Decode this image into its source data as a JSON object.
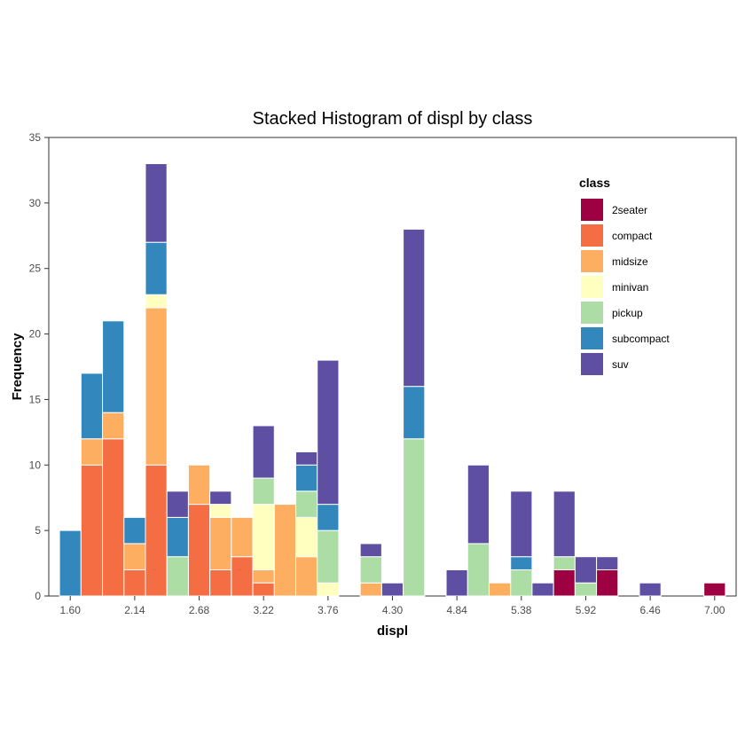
{
  "chart_data": {
    "type": "bar",
    "stacked": true,
    "title": "Stacked Histogram of displ by class",
    "xlabel": "displ",
    "ylabel": "Frequency",
    "bin_width": 0.18,
    "xlim": [
      1.42,
      7.18
    ],
    "ylim": [
      0,
      35
    ],
    "x_ticks": [
      "1.60",
      "2.14",
      "2.68",
      "3.22",
      "3.76",
      "4.30",
      "4.84",
      "5.38",
      "5.92",
      "6.46",
      "7.00"
    ],
    "y_ticks": [
      "0",
      "5",
      "10",
      "15",
      "20",
      "25",
      "30",
      "35"
    ],
    "grid": false,
    "legend": {
      "title": "class",
      "placement": "top-right"
    },
    "categories": [
      "1.60",
      "1.78",
      "1.96",
      "2.14",
      "2.32",
      "2.50",
      "2.68",
      "2.86",
      "3.04",
      "3.22",
      "3.40",
      "3.58",
      "3.76",
      "3.94",
      "4.12",
      "4.30",
      "4.48",
      "4.66",
      "4.84",
      "5.02",
      "5.20",
      "5.38",
      "5.56",
      "5.74",
      "5.92",
      "6.10",
      "6.28",
      "6.46",
      "6.64",
      "6.82",
      "7.00"
    ],
    "series": [
      {
        "name": "2seater",
        "color": "#9e0142",
        "values": [
          0,
          0,
          0,
          0,
          0,
          0,
          0,
          0,
          0,
          0,
          0,
          0,
          0,
          0,
          0,
          0,
          0,
          0,
          0,
          0,
          0,
          0,
          0,
          2,
          0,
          2,
          0,
          0,
          0,
          0,
          1
        ]
      },
      {
        "name": "compact",
        "color": "#f46d43",
        "values": [
          0,
          10,
          12,
          2,
          10,
          0,
          7,
          2,
          3,
          1,
          0,
          0,
          0,
          0,
          0,
          0,
          0,
          0,
          0,
          0,
          0,
          0,
          0,
          0,
          0,
          0,
          0,
          0,
          0,
          0,
          0
        ]
      },
      {
        "name": "midsize",
        "color": "#fdae61",
        "values": [
          0,
          2,
          2,
          2,
          12,
          0,
          3,
          4,
          3,
          1,
          7,
          3,
          0,
          0,
          1,
          0,
          0,
          0,
          0,
          0,
          1,
          0,
          0,
          0,
          0,
          0,
          0,
          0,
          0,
          0,
          0
        ]
      },
      {
        "name": "minivan",
        "color": "#ffffbf",
        "values": [
          0,
          0,
          0,
          0,
          1,
          0,
          0,
          1,
          0,
          5,
          0,
          3,
          1,
          0,
          0,
          0,
          0,
          0,
          0,
          0,
          0,
          0,
          0,
          0,
          0,
          0,
          0,
          0,
          0,
          0,
          0
        ]
      },
      {
        "name": "pickup",
        "color": "#abdda4",
        "values": [
          0,
          0,
          0,
          0,
          0,
          3,
          0,
          0,
          0,
          2,
          0,
          2,
          4,
          0,
          2,
          0,
          12,
          0,
          0,
          4,
          0,
          2,
          0,
          1,
          1,
          0,
          0,
          0,
          0,
          0,
          0
        ]
      },
      {
        "name": "subcompact",
        "color": "#3288bd",
        "values": [
          5,
          5,
          7,
          2,
          4,
          3,
          0,
          0,
          0,
          0,
          0,
          2,
          2,
          0,
          0,
          0,
          4,
          0,
          0,
          0,
          0,
          1,
          0,
          0,
          0,
          0,
          0,
          0,
          0,
          0,
          0
        ]
      },
      {
        "name": "suv",
        "color": "#5e4fa2",
        "values": [
          0,
          0,
          0,
          0,
          6,
          2,
          0,
          1,
          0,
          4,
          0,
          1,
          11,
          0,
          1,
          1,
          12,
          0,
          2,
          6,
          0,
          5,
          1,
          5,
          2,
          1,
          0,
          1,
          0,
          0,
          0
        ]
      }
    ]
  }
}
